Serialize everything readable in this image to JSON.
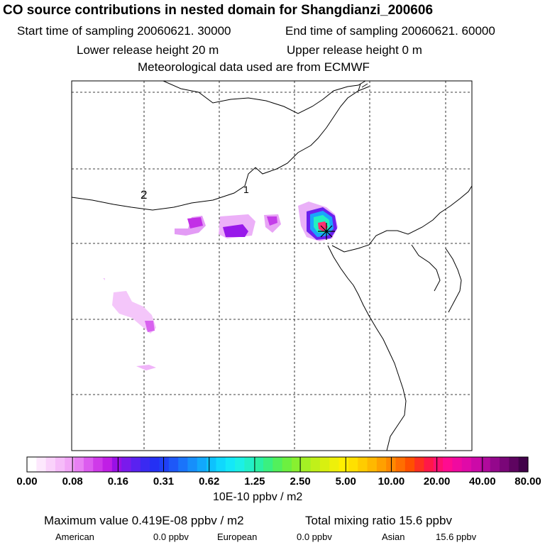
{
  "title": "CO  source contributions in nested domain for Shangdianzi_200606",
  "sampling": {
    "start": "Start time of sampling 20060621. 30000",
    "end": "End time of sampling 20060621. 60000"
  },
  "release": {
    "lower": "Lower release height   20 m",
    "upper": "Upper release height    0 m"
  },
  "met": "Meteorological data used are from ECMWF",
  "map_labels": [
    "2",
    "1"
  ],
  "colorbar": {
    "ticks": [
      "0.00",
      "0.08",
      "0.16",
      "0.31",
      "0.62",
      "1.25",
      "2.50",
      "5.00",
      "10.00",
      "20.00",
      "40.00",
      "80.00"
    ],
    "unit": "10E-10 ppbv / m2",
    "colors": [
      "#ffffff",
      "#fde8fd",
      "#fad2fb",
      "#f6bcf9",
      "#f2a6f7",
      "#e880f3",
      "#dc5cef",
      "#cf3ae9",
      "#c01fe5",
      "#9a10e6",
      "#7a1aec",
      "#5a22f0",
      "#3a2af2",
      "#2430f4",
      "#1f40f6",
      "#1e58f8",
      "#1a74fa",
      "#168ffb",
      "#12a8fc",
      "#0ec2fd",
      "#10d8fd",
      "#14e8f8",
      "#1cf0e6",
      "#22f0c8",
      "#2af0a4",
      "#3af080",
      "#52f05c",
      "#6cf040",
      "#88f030",
      "#a4f024",
      "#c0f01a",
      "#d8f010",
      "#eef00a",
      "#fff000",
      "#ffe000",
      "#ffcc00",
      "#ffb800",
      "#ffa000",
      "#ff8800",
      "#ff6e00",
      "#ff5000",
      "#ff3020",
      "#ff1848",
      "#ff1070",
      "#ff0c90",
      "#f00aa0",
      "#e00aa8",
      "#cc0aa8",
      "#b00a9c",
      "#94088c",
      "#7a0678",
      "#5e0460",
      "#42024a"
    ]
  },
  "max_value": "Maximum value  0.419E-08 ppbv / m2",
  "total": "Total mixing ratio       15.6 ppbv",
  "contributions": {
    "american_label": "American",
    "american": "0.0 ppbv",
    "european_label": "European",
    "european": "0.0 ppbv",
    "asian_label": "Asian",
    "asian": "15.6 ppbv"
  },
  "chart_data": {
    "type": "heatmap",
    "title": "CO  source contributions in nested domain for Shangdianzi_200606",
    "scale_ticks": [
      0.0,
      0.08,
      0.16,
      0.31,
      0.62,
      1.25,
      2.5,
      5.0,
      10.0,
      20.0,
      40.0,
      80.0
    ],
    "scale_unit": "10E-10 ppbv / m2",
    "max_value": "0.419E-08 ppbv / m2",
    "total_mixing_ratio_ppbv": 15.6,
    "contributions_ppbv": {
      "American": 0.0,
      "European": 0.0,
      "Asian": 15.6
    },
    "receptor": "Shangdianzi",
    "grid": true
  }
}
